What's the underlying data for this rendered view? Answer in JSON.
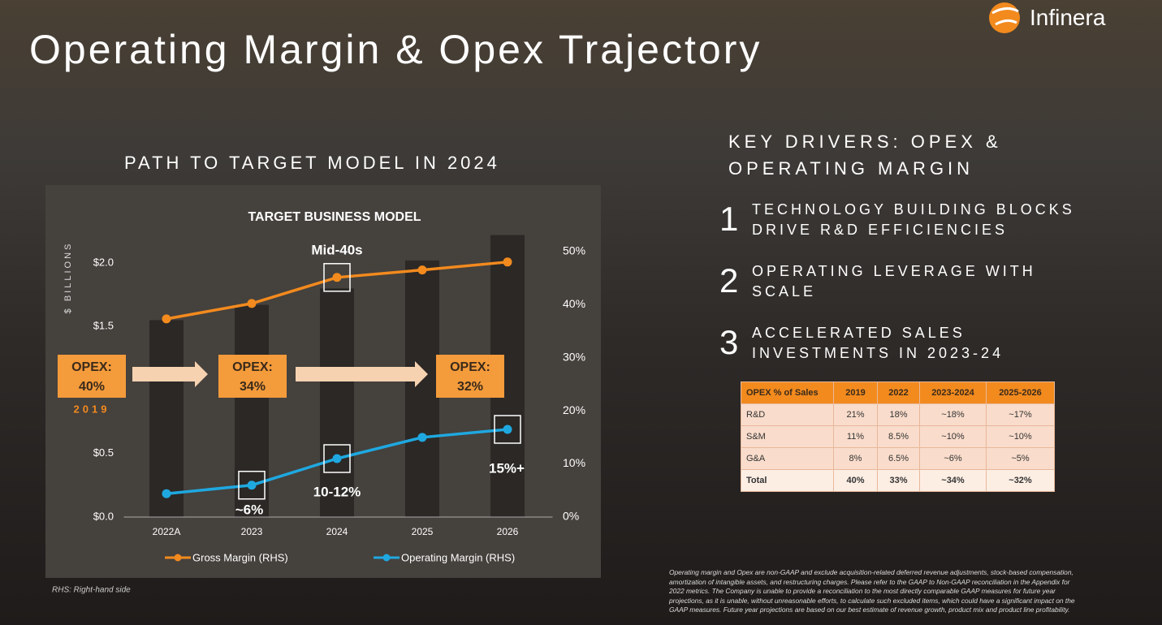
{
  "title": "Operating Margin & Opex Trajectory",
  "logo": "Infinera",
  "section_heading": "PATH TO TARGET MODEL IN 2024",
  "chart_data": {
    "type": "combo",
    "title": "TARGET BUSINESS MODEL",
    "y_label": "$ BILLIONS",
    "categories": [
      "2022A",
      "2023",
      "2024",
      "2025",
      "2026"
    ],
    "bars": {
      "color": "#2b2826",
      "values": [
        1.55,
        1.67,
        1.8,
        2.02,
        2.22
      ]
    },
    "series": [
      {
        "name": "Gross Margin (RHS)",
        "color": "#f28a1e",
        "axis": "y2",
        "values": [
          37.3,
          40.2,
          45.1,
          46.5,
          48.0
        ]
      },
      {
        "name": "Operating Margin (RHS)",
        "color": "#1fa8e0",
        "axis": "y2",
        "values": [
          4.4,
          6.0,
          11.0,
          15.0,
          16.5
        ]
      }
    ],
    "ylim": [
      0,
      2.2
    ],
    "yticks": [
      {
        "value": 0,
        "label": "$0.0"
      },
      {
        "value": 0.5,
        "label": "$0.5"
      },
      {
        "value": 1.5,
        "label": "$1.5"
      },
      {
        "value": 2.0,
        "label": "$2.0"
      }
    ],
    "y2lim": [
      0,
      52.6
    ],
    "y2ticks": [
      {
        "value": 0,
        "label": "0%"
      },
      {
        "value": 10,
        "label": "10%"
      },
      {
        "value": 20,
        "label": "20%"
      },
      {
        "value": 30,
        "label": "30%"
      },
      {
        "value": 40,
        "label": "40%"
      },
      {
        "value": 50,
        "label": "50%"
      }
    ],
    "annotations": [
      "Mid-40s",
      "~6%",
      "10-12%",
      "15%+"
    ],
    "opex_callouts": [
      {
        "label": "OPEX:",
        "value": "40%",
        "year": "2019"
      },
      {
        "label": "OPEX:",
        "value": "34%"
      },
      {
        "label": "OPEX:",
        "value": "32%"
      }
    ],
    "note": "RHS: Right-hand side"
  },
  "key_drivers": {
    "heading_lines": [
      "KEY DRIVERS: OPEX &",
      "OPERATING MARGIN"
    ],
    "items": [
      {
        "number": "1",
        "lines": [
          "TECHNOLOGY BUILDING BLOCKS",
          "DRIVE R&D EFFICIENCIES"
        ]
      },
      {
        "number": "2",
        "lines": [
          "OPERATING LEVERAGE WITH",
          "SCALE"
        ]
      },
      {
        "number": "3",
        "lines": [
          "ACCELERATED SALES",
          "INVESTMENTS IN 2023-24"
        ]
      }
    ]
  },
  "table": {
    "header": [
      "OPEX % of Sales",
      "2019",
      "2022",
      "2023-2024",
      "2025-2026"
    ],
    "rows": [
      [
        "R&D",
        "21%",
        "18%",
        "~18%",
        "~17%"
      ],
      [
        "S&M",
        "11%",
        "8.5%",
        "~10%",
        "~10%"
      ],
      [
        "G&A",
        "8%",
        "6.5%",
        "~6%",
        "~5%"
      ],
      [
        "Total",
        "40%",
        "33%",
        "~34%",
        "~32%"
      ]
    ]
  },
  "footnote_lines": [
    "Operating margin and Opex are non-GAAP and exclude acquisition-related deferred revenue adjustments, stock-based compensation,",
    "amortization of intangible assets, and restructuring charges. Please refer to the GAAP to Non-GAAP reconciliation in the Appendix for",
    "2022 metrics. The Company is unable to provide a reconciliation to the most directly comparable GAAP measures for future year",
    "projections, as it is unable, without unreasonable efforts, to calculate such excluded items, which could have a significant impact on the",
    "GAAP measures. Future year projections are based on our best estimate of revenue growth, product mix and product line profitability."
  ]
}
